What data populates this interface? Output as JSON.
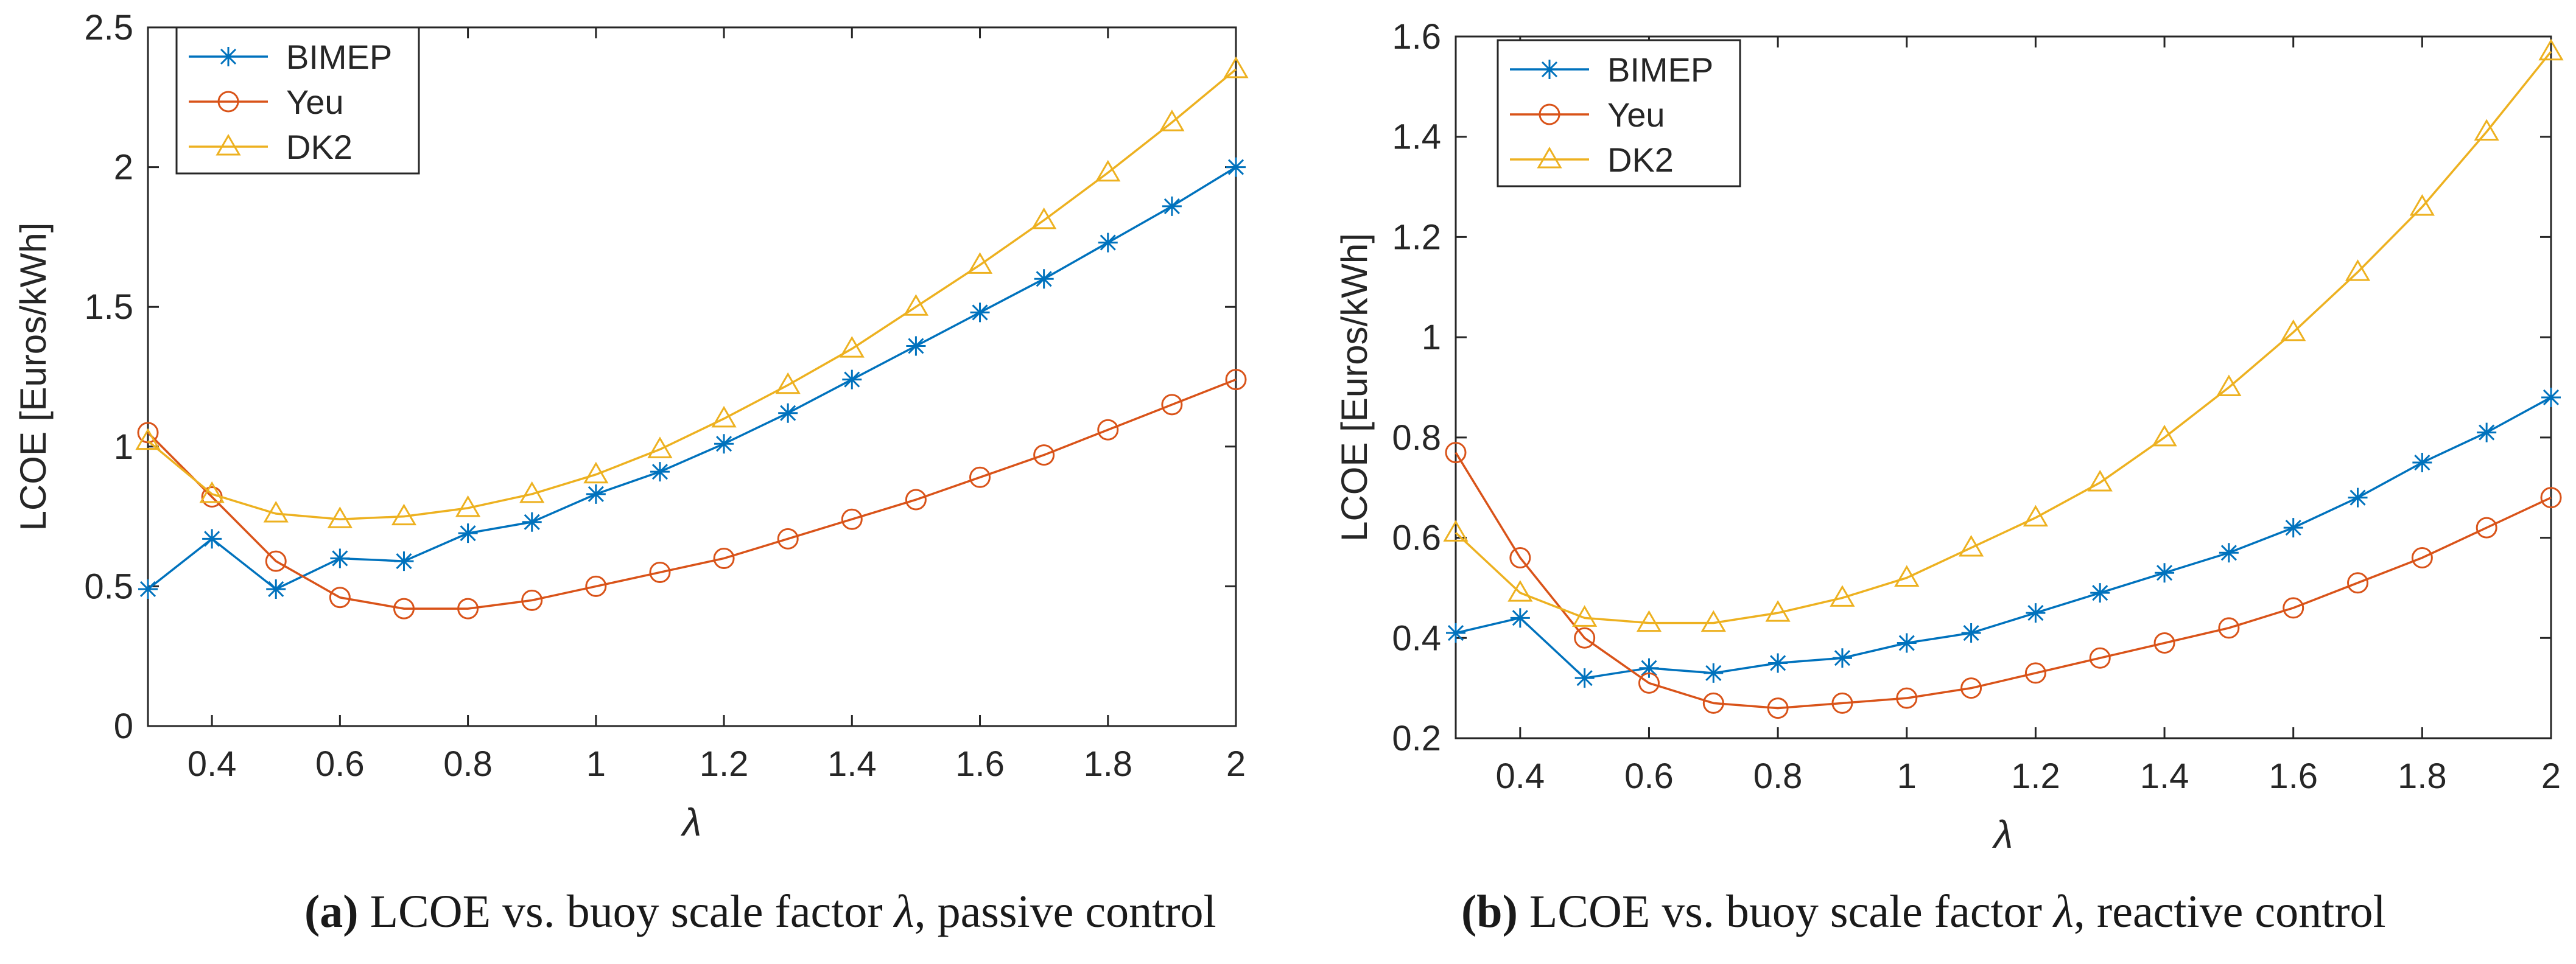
{
  "chart_data": [
    {
      "type": "line",
      "xlabel": "λ",
      "ylabel": "LCOE [Euros/kWh]",
      "xlim": [
        0.3,
        2.0
      ],
      "ylim": [
        0,
        2.5
      ],
      "xticks": [
        "0.4",
        "0.6",
        "0.8",
        "1",
        "1.2",
        "1.4",
        "1.6",
        "1.8",
        "2"
      ],
      "yticks": [
        "0",
        "0.5",
        "1",
        "1.5",
        "2",
        "2.5"
      ],
      "x": [
        0.3,
        0.4,
        0.5,
        0.6,
        0.7,
        0.8,
        0.9,
        1.0,
        1.1,
        1.2,
        1.3,
        1.4,
        1.5,
        1.6,
        1.7,
        1.8,
        1.9,
        2.0
      ],
      "legend": "top-left",
      "series": [
        {
          "name": "BIMEP",
          "color": "#0072BD",
          "marker": "asterisk",
          "values": [
            0.49,
            0.67,
            0.49,
            0.6,
            0.59,
            0.69,
            0.73,
            0.83,
            0.91,
            1.01,
            1.12,
            1.24,
            1.36,
            1.48,
            1.6,
            1.73,
            1.86,
            2.0
          ]
        },
        {
          "name": "Yeu",
          "color": "#D95319",
          "marker": "circle",
          "values": [
            1.05,
            0.82,
            0.59,
            0.46,
            0.42,
            0.42,
            0.45,
            0.5,
            0.55,
            0.6,
            0.67,
            0.74,
            0.81,
            0.89,
            0.97,
            1.06,
            1.15,
            1.24
          ]
        },
        {
          "name": "DK2",
          "color": "#EDB120",
          "marker": "triangle",
          "values": [
            1.02,
            0.83,
            0.76,
            0.74,
            0.75,
            0.78,
            0.83,
            0.9,
            0.99,
            1.1,
            1.22,
            1.35,
            1.5,
            1.65,
            1.81,
            1.98,
            2.16,
            2.35
          ]
        }
      ]
    },
    {
      "type": "line",
      "xlabel": "λ",
      "ylabel": "LCOE [Euros/kWh]",
      "xlim": [
        0.3,
        2.0
      ],
      "ylim": [
        0.2,
        1.6
      ],
      "xticks": [
        "0.4",
        "0.6",
        "0.8",
        "1",
        "1.2",
        "1.4",
        "1.6",
        "1.8",
        "2"
      ],
      "yticks": [
        "0.2",
        "0.4",
        "0.6",
        "0.8",
        "1",
        "1.2",
        "1.4",
        "1.6"
      ],
      "x": [
        0.3,
        0.4,
        0.5,
        0.6,
        0.7,
        0.8,
        0.9,
        1.0,
        1.1,
        1.2,
        1.3,
        1.4,
        1.5,
        1.6,
        1.7,
        1.8,
        1.9,
        2.0
      ],
      "legend": "top-left",
      "series": [
        {
          "name": "BIMEP",
          "color": "#0072BD",
          "marker": "asterisk",
          "values": [
            0.41,
            0.44,
            0.32,
            0.34,
            0.33,
            0.35,
            0.36,
            0.39,
            0.41,
            0.45,
            0.49,
            0.53,
            0.57,
            0.62,
            0.68,
            0.75,
            0.81,
            0.88
          ]
        },
        {
          "name": "Yeu",
          "color": "#D95319",
          "marker": "circle",
          "values": [
            0.77,
            0.56,
            0.4,
            0.31,
            0.27,
            0.26,
            0.27,
            0.28,
            0.3,
            0.33,
            0.36,
            0.39,
            0.42,
            0.46,
            0.51,
            0.56,
            0.62,
            0.68
          ]
        },
        {
          "name": "DK2",
          "color": "#EDB120",
          "marker": "triangle",
          "values": [
            0.61,
            0.49,
            0.44,
            0.43,
            0.43,
            0.45,
            0.48,
            0.52,
            0.58,
            0.64,
            0.71,
            0.8,
            0.9,
            1.01,
            1.13,
            1.26,
            1.41,
            1.57
          ]
        }
      ]
    }
  ],
  "captions": [
    {
      "label": "(a)",
      "prefix": " LCOE vs. buoy scale factor ",
      "symbol": "λ",
      "suffix": ", passive control"
    },
    {
      "label": "(b)",
      "prefix": " LCOE vs. buoy scale factor ",
      "symbol": "λ",
      "suffix": ", reactive control"
    }
  ]
}
